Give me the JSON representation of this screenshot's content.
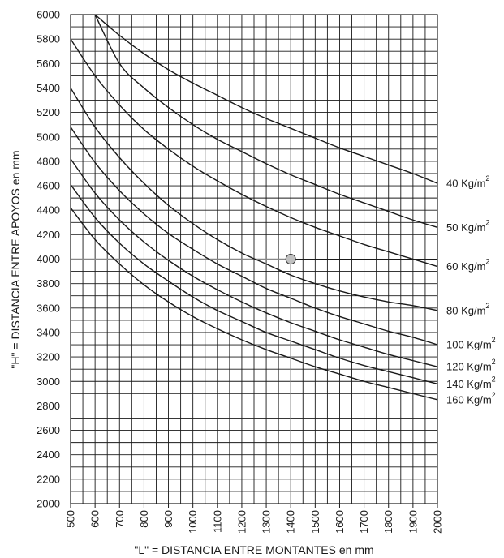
{
  "chart_data": {
    "type": "line",
    "xlabel": "\"L\"  =  DISTANCIA ENTRE MONTANTES en mm",
    "ylabel": "\"H\"  =  DISTANCIA ENTRE APOYOS en mm",
    "xlim": [
      500,
      2000
    ],
    "ylim": [
      2000,
      6000
    ],
    "x_ticks": [
      500,
      600,
      700,
      800,
      900,
      1000,
      1100,
      1200,
      1300,
      1400,
      1500,
      1600,
      1700,
      1800,
      1900,
      2000
    ],
    "y_ticks": [
      2000,
      2200,
      2400,
      2600,
      2800,
      3000,
      3200,
      3400,
      3600,
      3800,
      4000,
      4200,
      4400,
      4600,
      4800,
      5000,
      5200,
      5400,
      5600,
      5800,
      6000
    ],
    "grid": true,
    "legend": "right-of-curves",
    "series": [
      {
        "name": "40 Kg/m",
        "sup": "2",
        "x": [
          600,
          700,
          800,
          900,
          1000,
          1100,
          1200,
          1300,
          1400,
          1500,
          1600,
          1700,
          1800,
          1900,
          2000
        ],
        "y": [
          6000,
          5830,
          5680,
          5550,
          5440,
          5340,
          5240,
          5150,
          5070,
          4990,
          4910,
          4840,
          4770,
          4700,
          4620
        ]
      },
      {
        "name": "50 Kg/m",
        "sup": "2",
        "x": [
          600,
          700,
          800,
          900,
          1000,
          1100,
          1200,
          1300,
          1400,
          1500,
          1600,
          1700,
          1800,
          1900,
          2000
        ],
        "y": [
          6000,
          5600,
          5400,
          5240,
          5100,
          4980,
          4880,
          4780,
          4690,
          4610,
          4530,
          4460,
          4390,
          4320,
          4260
        ]
      },
      {
        "name": "60 Kg/m",
        "sup": "2",
        "x": [
          500,
          600,
          700,
          800,
          900,
          1000,
          1100,
          1200,
          1300,
          1400,
          1500,
          1600,
          1700,
          1800,
          1900,
          2000
        ],
        "y": [
          5800,
          5500,
          5260,
          5060,
          4900,
          4760,
          4640,
          4530,
          4430,
          4340,
          4260,
          4190,
          4120,
          4060,
          4000,
          3940
        ]
      },
      {
        "name": "80 Kg/m",
        "sup": "2",
        "x": [
          500,
          600,
          700,
          800,
          900,
          1000,
          1100,
          1200,
          1300,
          1400,
          1500,
          1600,
          1700,
          1800,
          1900,
          2000
        ],
        "y": [
          5400,
          5080,
          4830,
          4620,
          4440,
          4290,
          4160,
          4050,
          3960,
          3870,
          3800,
          3740,
          3690,
          3650,
          3620,
          3580
        ]
      },
      {
        "name": "100 Kg/m",
        "sup": "2",
        "x": [
          500,
          600,
          700,
          800,
          900,
          1000,
          1100,
          1200,
          1300,
          1400,
          1500,
          1600,
          1700,
          1800,
          1900,
          2000
        ],
        "y": [
          5080,
          4790,
          4560,
          4370,
          4210,
          4080,
          3960,
          3860,
          3760,
          3680,
          3600,
          3530,
          3470,
          3410,
          3360,
          3300
        ]
      },
      {
        "name": "120 Kg/m",
        "sup": "2",
        "x": [
          500,
          600,
          700,
          800,
          900,
          1000,
          1100,
          1200,
          1300,
          1400,
          1500,
          1600,
          1700,
          1800,
          1900,
          2000
        ],
        "y": [
          4820,
          4540,
          4320,
          4140,
          3990,
          3860,
          3750,
          3650,
          3560,
          3480,
          3410,
          3340,
          3280,
          3220,
          3170,
          3120
        ]
      },
      {
        "name": "140 Kg/m",
        "sup": "2",
        "x": [
          500,
          600,
          700,
          800,
          900,
          1000,
          1100,
          1200,
          1300,
          1400,
          1500,
          1600,
          1700,
          1800,
          1900,
          2000
        ],
        "y": [
          4610,
          4340,
          4130,
          3960,
          3820,
          3690,
          3580,
          3490,
          3400,
          3330,
          3260,
          3190,
          3130,
          3080,
          3030,
          2980
        ]
      },
      {
        "name": "160 Kg/m",
        "sup": "2",
        "x": [
          500,
          600,
          700,
          800,
          900,
          1000,
          1100,
          1200,
          1300,
          1400,
          1500,
          1600,
          1700,
          1800,
          1900,
          2000
        ],
        "y": [
          4420,
          4160,
          3960,
          3790,
          3650,
          3530,
          3430,
          3340,
          3260,
          3190,
          3120,
          3060,
          3000,
          2950,
          2900,
          2850
        ]
      }
    ],
    "legend_anchor_y": [
      4620,
      4260,
      3940,
      3580,
      3300,
      3120,
      2980,
      2850
    ],
    "annotation": {
      "x": 1400,
      "y": 4000,
      "color": "#c0c0c0"
    },
    "colors": {
      "curve": "#1a1a1a",
      "grid": "#1a1a1a",
      "guide": "#888888"
    }
  }
}
